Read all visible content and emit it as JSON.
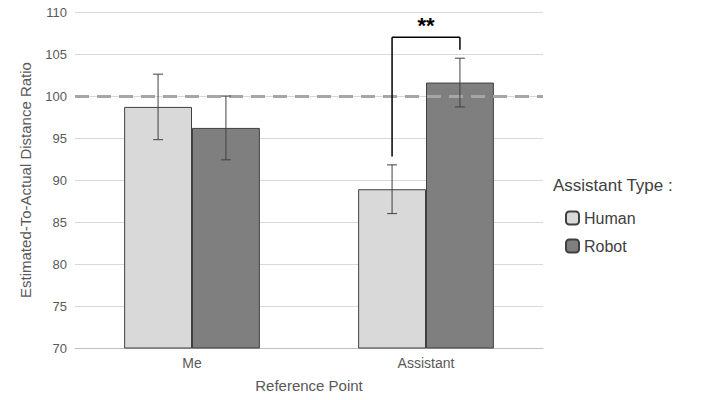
{
  "chart_data": {
    "type": "bar",
    "x_label": "Reference Point",
    "y_label": "Estimated-To-Actual Distance Ratio",
    "categories": [
      "Me",
      "Assistant"
    ],
    "series": [
      {
        "name": "Human",
        "color": "#d9d9d9",
        "values": [
          98.7,
          88.9
        ],
        "errors": [
          3.9,
          2.9
        ]
      },
      {
        "name": "Robot",
        "color": "#7f7f7f",
        "values": [
          96.2,
          101.6
        ],
        "errors": [
          3.8,
          2.9
        ]
      }
    ],
    "ylim": [
      70,
      110
    ],
    "yticks": [
      70,
      75,
      80,
      85,
      90,
      95,
      100,
      105,
      110
    ],
    "grid": true,
    "legend": "right",
    "legend_title": "Assistant Type :",
    "reference_line": 100,
    "annotations": [
      {
        "text": "**",
        "category": "Assistant"
      }
    ]
  }
}
